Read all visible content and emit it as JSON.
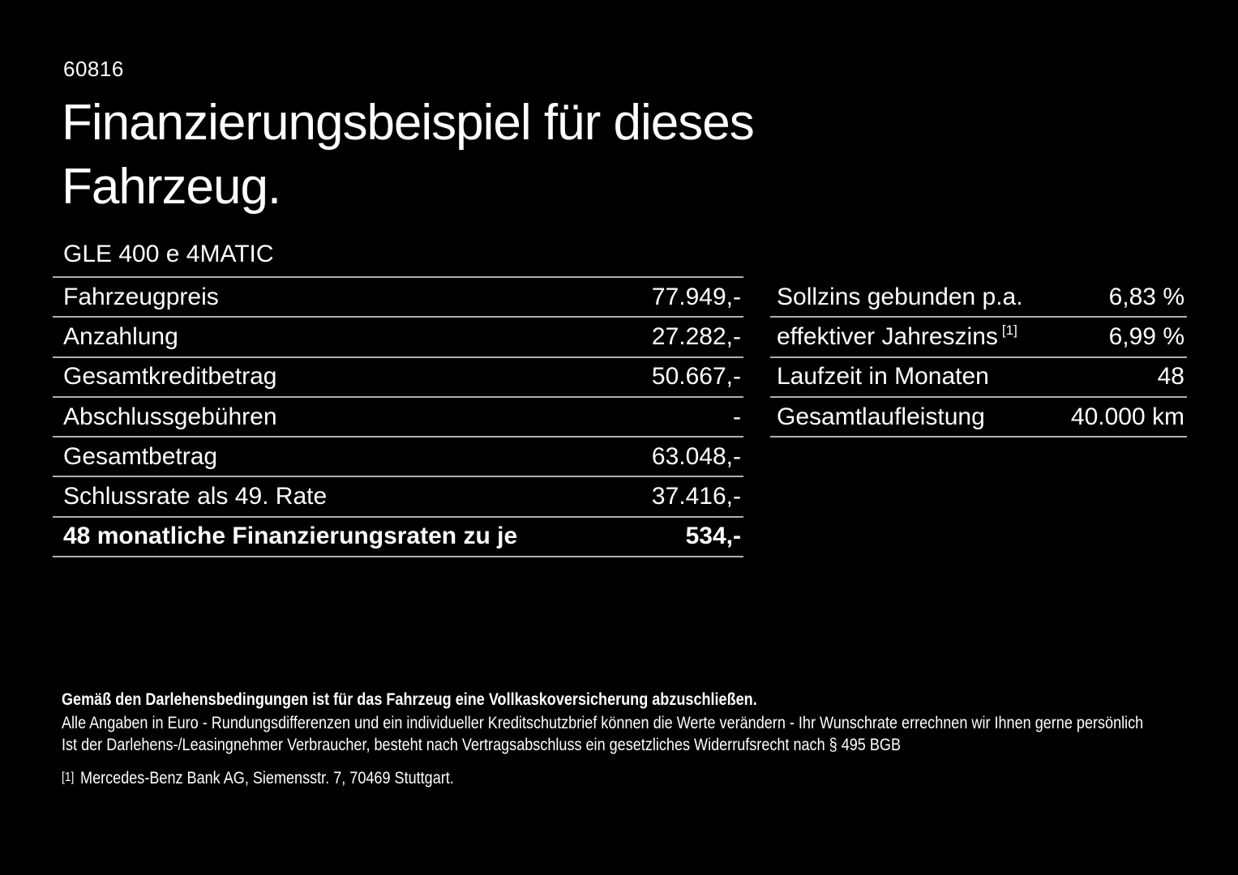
{
  "page": {
    "doc_number": "60816",
    "title_line1": "Finanzierungsbeispiel für dieses",
    "title_line2": "Fahrzeug.",
    "vehicle_model": "GLE 400 e 4MATIC"
  },
  "left_table": {
    "rows": [
      {
        "label": "Fahrzeugpreis",
        "value": "77.949,-"
      },
      {
        "label": "Anzahlung",
        "value": "27.282,-"
      },
      {
        "label": "Gesamtkreditbetrag",
        "value": "50.667,-"
      },
      {
        "label": "Abschlussgebühren",
        "value": "-"
      },
      {
        "label": "Gesamtbetrag",
        "value": "63.048,-"
      },
      {
        "label": "Schlussrate als 49. Rate",
        "value": "37.416,-"
      },
      {
        "label": "48 monatliche Finanzierungsraten zu je",
        "value": "534,-"
      }
    ]
  },
  "right_table": {
    "rows": [
      {
        "label": "Sollzins gebunden p.a.",
        "value": "6,83 %"
      },
      {
        "label": "effektiver Jahreszins",
        "sup": "[1]",
        "value": "6,99 %"
      },
      {
        "label": "Laufzeit in Monaten",
        "value": "48"
      },
      {
        "label": "Gesamtlaufleistung",
        "value": "40.000 km"
      }
    ]
  },
  "footer": {
    "line1": "Gemäß den Darlehensbedingungen ist für das Fahrzeug eine Vollkaskoversicherung abzuschließen.",
    "line2": "Alle Angaben in Euro - Rundungsdifferenzen und ein individueller Kreditschutzbrief können die Werte verändern - Ihr Wunschrate errechnen wir Ihnen gerne persönlich",
    "line3": "Ist der Darlehens-/Leasingnehmer Verbraucher, besteht nach Vertragsabschluss ein gesetzliches Widerrufsrecht nach § 495 BGB",
    "footnote_marker": "[1]",
    "footnote_text": "Mercedes-Benz Bank AG, Siemensstr. 7, 70469 Stuttgart."
  },
  "colors": {
    "background": "#000000",
    "text": "#ffffff",
    "divider": "#b0b0b0"
  }
}
